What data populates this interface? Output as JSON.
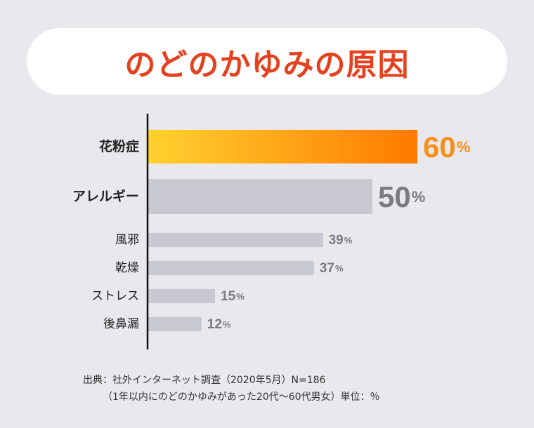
{
  "title": "のどのかゆみの原因",
  "chart_data": {
    "type": "bar",
    "orientation": "horizontal",
    "title": "のどのかゆみの原因",
    "categories": [
      "花粉症",
      "アレルギー",
      "風邪",
      "乾燥",
      "ストレス",
      "後鼻漏"
    ],
    "values": [
      60,
      50,
      39,
      37,
      15,
      12
    ],
    "unit": "%",
    "xlim": [
      0,
      100
    ],
    "highlight_index": 0,
    "colors": {
      "highlight_start": "#ffd22e",
      "highlight_end": "#ff7a00",
      "bar": "#c8c9d0",
      "highlight_value": "#f5901a",
      "value": "#7a7b80",
      "axis": "#111111"
    }
  },
  "source": {
    "line1": "出典：社外インターネット調査（2020年5月）N=186",
    "line2": "（1年以内にのどのかゆみがあった20代〜60代男女）単位：％"
  }
}
